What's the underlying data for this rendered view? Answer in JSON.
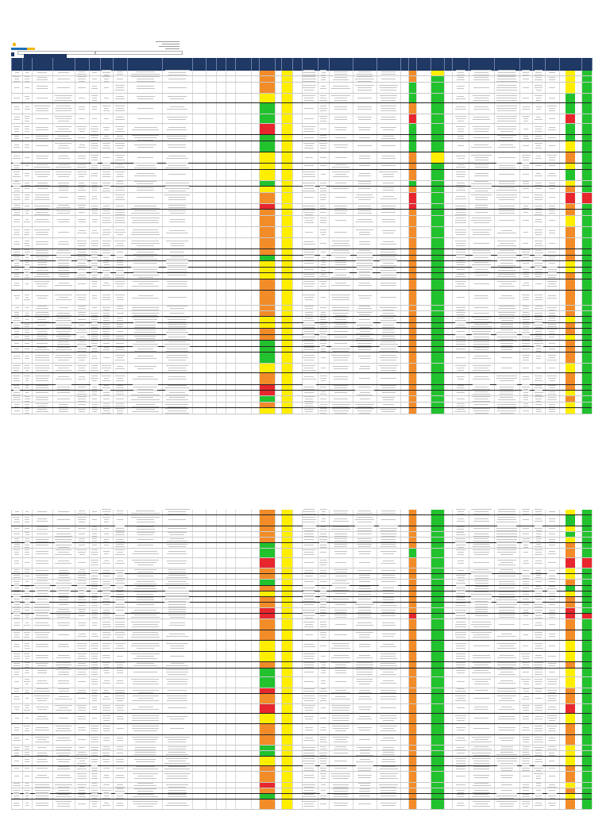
{
  "palette": {
    "header": "#1f3864",
    "red": "#e8262d",
    "orange": "#f28c28",
    "yellow": "#ffee00",
    "green": "#22c22e",
    "grid": "#d6d6d6"
  },
  "sheet_1": {
    "row_count": 43,
    "status_columns": {
      "col_a": [
        "orange",
        "orange",
        "orange",
        "yellow",
        "green",
        "green",
        "red",
        "green",
        "green",
        "yellow",
        "yellow",
        "yellow",
        "green",
        "yellow",
        "orange",
        "red",
        "orange",
        "orange",
        "orange",
        "orange",
        "orange",
        "green",
        "yellow",
        "yellow",
        "yellow",
        "orange",
        "orange",
        "orange",
        "orange",
        "yellow",
        "yellow",
        "orange",
        "orange",
        "green",
        "green",
        "green",
        "yellow",
        "orange",
        "red",
        "red",
        "green",
        "orange",
        "yellow"
      ],
      "col_b": [
        "yellow",
        "yellow",
        "yellow",
        "yellow",
        "yellow",
        "yellow",
        "yellow",
        "yellow",
        "yellow",
        "yellow",
        "yellow",
        "yellow",
        "yellow",
        "yellow",
        "yellow",
        "yellow",
        "yellow",
        "yellow",
        "yellow",
        "yellow",
        "yellow",
        "yellow",
        "yellow",
        "yellow",
        "yellow",
        "yellow",
        "yellow",
        "yellow",
        "yellow",
        "yellow",
        "yellow",
        "yellow",
        "yellow",
        "yellow",
        "yellow",
        "yellow",
        "yellow",
        "yellow",
        "yellow",
        "yellow",
        "yellow",
        "yellow",
        "yellow"
      ],
      "col_c": [
        "orange",
        "orange",
        "green",
        "green",
        "orange",
        "red",
        "green",
        "green",
        "green",
        "orange",
        "orange",
        "orange",
        "green",
        "orange",
        "red",
        "red",
        "orange",
        "orange",
        "orange",
        "orange",
        "orange",
        "orange",
        "orange",
        "orange",
        "orange",
        "orange",
        "orange",
        "orange",
        "orange",
        "orange",
        "orange",
        "orange",
        "orange",
        "orange",
        "orange",
        "orange",
        "orange",
        "orange",
        "orange",
        "orange",
        "orange",
        "orange",
        "orange"
      ],
      "col_d": [
        "yellow",
        "green",
        "green",
        "green",
        "green",
        "green",
        "green",
        "green",
        "green",
        "yellow",
        "green",
        "green",
        "green",
        "green",
        "green",
        "green",
        "green",
        "green",
        "green",
        "green",
        "green",
        "green",
        "green",
        "green",
        "green",
        "green",
        "green",
        "green",
        "green",
        "green",
        "green",
        "green",
        "green",
        "green",
        "green",
        "green",
        "green",
        "green",
        "green",
        "green",
        "green",
        "green",
        "green"
      ],
      "col_e": [
        "yellow",
        "yellow",
        "yellow",
        "green",
        "green",
        "red",
        "green",
        "green",
        "yellow",
        "orange",
        "yellow",
        "green",
        "yellow",
        "orange",
        "red",
        "orange",
        "orange",
        "yellow",
        "orange",
        "orange",
        "orange",
        "orange",
        "yellow",
        "yellow",
        "orange",
        "orange",
        "orange",
        "orange",
        "orange",
        "yellow",
        "orange",
        "orange",
        "yellow",
        "orange",
        "orange",
        "orange",
        "yellow",
        "orange",
        "orange",
        "yellow",
        "orange",
        "yellow",
        "yellow"
      ],
      "col_f": [
        "green",
        "green",
        "green",
        "green",
        "green",
        "green",
        "green",
        "green",
        "green",
        "green",
        "green",
        "green",
        "green",
        "green",
        "red",
        "green",
        "green",
        "green",
        "green",
        "green",
        "green",
        "green",
        "green",
        "green",
        "green",
        "green",
        "green",
        "green",
        "green",
        "green",
        "green",
        "green",
        "green",
        "green",
        "green",
        "green",
        "green",
        "green",
        "green",
        "green",
        "green",
        "green",
        "green"
      ]
    }
  },
  "sheet_2": {
    "row_count": 39,
    "status_columns": {
      "col_a": [
        "orange",
        "orange",
        "orange",
        "orange",
        "orange",
        "green",
        "green",
        "red",
        "orange",
        "orange",
        "green",
        "orange",
        "yellow",
        "orange",
        "orange",
        "red",
        "red",
        "orange",
        "orange",
        "yellow",
        "yellow",
        "orange",
        "green",
        "green",
        "red",
        "orange",
        "red",
        "yellow",
        "orange",
        "orange",
        "green",
        "green",
        "yellow",
        "orange",
        "orange",
        "red",
        "orange",
        "green",
        "orange"
      ],
      "col_b": [
        "yellow",
        "yellow",
        "yellow",
        "yellow",
        "yellow",
        "yellow",
        "yellow",
        "yellow",
        "yellow",
        "yellow",
        "yellow",
        "yellow",
        "yellow",
        "yellow",
        "yellow",
        "yellow",
        "yellow",
        "yellow",
        "yellow",
        "yellow",
        "yellow",
        "yellow",
        "yellow",
        "yellow",
        "yellow",
        "yellow",
        "yellow",
        "yellow",
        "yellow",
        "yellow",
        "yellow",
        "yellow",
        "yellow",
        "yellow",
        "yellow",
        "yellow",
        "yellow",
        "yellow",
        "yellow"
      ],
      "col_c": [
        "orange",
        "orange",
        "orange",
        "orange",
        "orange",
        "orange",
        "green",
        "orange",
        "orange",
        "orange",
        "orange",
        "orange",
        "orange",
        "orange",
        "orange",
        "orange",
        "red",
        "orange",
        "orange",
        "orange",
        "orange",
        "orange",
        "orange",
        "orange",
        "orange",
        "orange",
        "orange",
        "orange",
        "orange",
        "orange",
        "orange",
        "orange",
        "orange",
        "orange",
        "orange",
        "orange",
        "orange",
        "orange",
        "orange"
      ],
      "col_d": [
        "green",
        "green",
        "green",
        "green",
        "green",
        "green",
        "green",
        "green",
        "green",
        "green",
        "green",
        "green",
        "green",
        "green",
        "green",
        "green",
        "green",
        "green",
        "green",
        "green",
        "green",
        "green",
        "green",
        "green",
        "green",
        "green",
        "green",
        "green",
        "green",
        "green",
        "green",
        "green",
        "green",
        "green",
        "green",
        "green",
        "green",
        "green",
        "green"
      ],
      "col_e": [
        "yellow",
        "green",
        "yellow",
        "green",
        "yellow",
        "orange",
        "orange",
        "red",
        "yellow",
        "yellow",
        "orange",
        "green",
        "yellow",
        "orange",
        "orange",
        "red",
        "red",
        "orange",
        "orange",
        "yellow",
        "yellow",
        "orange",
        "yellow",
        "yellow",
        "orange",
        "orange",
        "red",
        "yellow",
        "orange",
        "orange",
        "yellow",
        "yellow",
        "yellow",
        "orange",
        "orange",
        "yellow",
        "orange",
        "yellow",
        "orange"
      ],
      "col_f": [
        "green",
        "green",
        "green",
        "green",
        "green",
        "green",
        "green",
        "red",
        "green",
        "green",
        "green",
        "green",
        "green",
        "green",
        "green",
        "green",
        "red",
        "green",
        "green",
        "green",
        "green",
        "green",
        "green",
        "green",
        "green",
        "green",
        "green",
        "green",
        "green",
        "green",
        "green",
        "green",
        "green",
        "green",
        "green",
        "green",
        "green",
        "green",
        "green"
      ]
    }
  }
}
